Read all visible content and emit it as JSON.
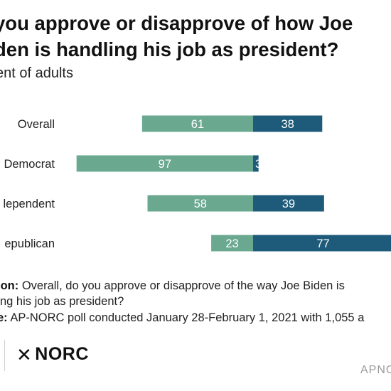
{
  "header": {
    "title": "you approve or disapprove of how Joe\nden is handling his job as president?",
    "subtitle": "ent of adults"
  },
  "colors": {
    "approve": "#6aa890",
    "disapprove": "#1e5a79",
    "bar_text": "#ffffff"
  },
  "chart_data": {
    "type": "bar",
    "orientation": "horizontal",
    "stacked": true,
    "diverging": true,
    "categories": [
      "Overall",
      "Democrat",
      "lependent",
      "epublican"
    ],
    "series": [
      {
        "values": [
          61,
          97,
          58,
          23
        ],
        "color": "#6aa890"
      },
      {
        "values": [
          38,
          3,
          39,
          77
        ],
        "color": "#1e5a79"
      }
    ],
    "value_labels": [
      [
        "61",
        "97",
        "58",
        "23"
      ],
      [
        "38",
        "3",
        "39",
        "77"
      ]
    ],
    "legend": "none",
    "grid": false
  },
  "notes": {
    "question_label": "ion:",
    "question_text": " Overall, do you approve or disapprove of the way Joe Biden is",
    "question_text_2": "ng his job as president?",
    "source_label": "e:",
    "source_text": " AP-NORC poll conducted January 28-February 1, 2021 with 1,055 a"
  },
  "footer": {
    "logo_mark": "✕",
    "logo_text": "NORC",
    "badge": "APNC"
  }
}
